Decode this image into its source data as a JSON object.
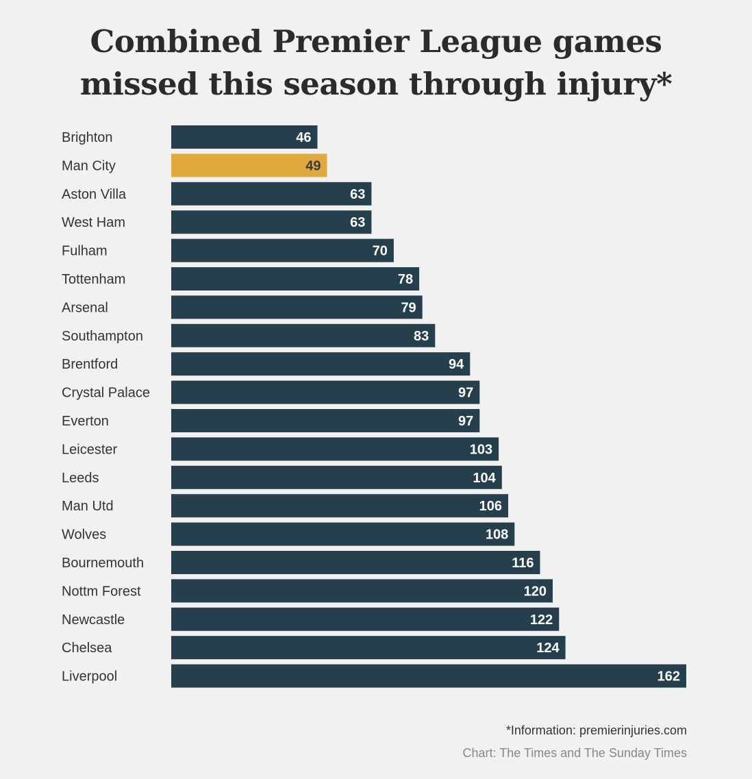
{
  "chart_data": {
    "type": "bar",
    "orientation": "horizontal",
    "title_lines": [
      "Combined Premier League games",
      "missed this season through injury*"
    ],
    "categories": [
      "Brighton",
      "Man City",
      "Aston Villa",
      "West Ham",
      "Fulham",
      "Tottenham",
      "Arsenal",
      "Southampton",
      "Brentford",
      "Crystal Palace",
      "Everton",
      "Leicester",
      "Leeds",
      "Man Utd",
      "Wolves",
      "Bournemouth",
      "Nottm Forest",
      "Newcastle",
      "Chelsea",
      "Liverpool"
    ],
    "values": [
      46,
      49,
      63,
      63,
      70,
      78,
      79,
      83,
      94,
      97,
      97,
      103,
      104,
      106,
      108,
      116,
      120,
      122,
      124,
      162
    ],
    "highlight_category": "Man City",
    "xlim": [
      0,
      162
    ],
    "grid": false,
    "legend": "none",
    "colors": {
      "bar": "#263f4d",
      "highlight": "#e0a93e",
      "value_label": "#ffffff",
      "highlight_value_label": "#3a3a3a"
    },
    "source": "*Information: premierinjuries.com",
    "credit": "Chart: The Times and The Sunday Times"
  }
}
